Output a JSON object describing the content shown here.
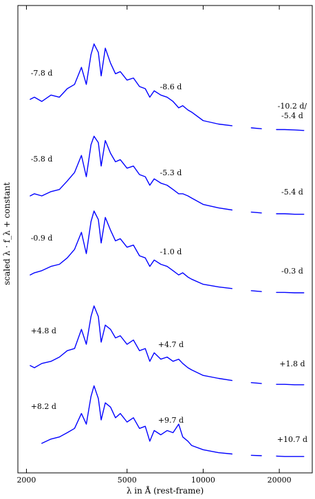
{
  "chart_data": {
    "type": "line",
    "title": "",
    "xlabel": "λ in Å (rest-frame)",
    "ylabel": "scaled λ · f_λ + constant",
    "x_scale": "log",
    "xlim": [
      1850,
      27000
    ],
    "x_ticks": [
      2000,
      5000,
      10000,
      20000
    ],
    "x_tick_labels": [
      "2000",
      "5000",
      "10000",
      "20000"
    ],
    "y_ticks": "none",
    "grid": false,
    "legend": "none",
    "line_color": "#0000ff",
    "series": [
      {
        "labels": [
          {
            "text": "-7.8 d",
            "x": 2080
          },
          {
            "text": "-8.6 d",
            "x": 7450
          },
          {
            "text": "-10.2 d/",
            "x": 22500
          },
          {
            "text": "-5.4 d",
            "x": 22500
          }
        ],
        "x": [
          2070,
          2150,
          2300,
          2500,
          2700,
          2900,
          3100,
          3300,
          3450,
          3600,
          3700,
          3850,
          3950,
          4100,
          4300,
          4500,
          4700,
          5000,
          5300,
          5600,
          5900,
          6150,
          6400,
          6800,
          7200,
          7600,
          8000,
          8300,
          8700,
          9000,
          10000,
          11500,
          13000,
          14000,
          15500,
          17000,
          18000,
          19500,
          21000,
          23000,
          25000
        ],
        "y": [
          0.25,
          0.3,
          0.2,
          0.35,
          0.3,
          0.5,
          0.6,
          1.0,
          0.6,
          1.3,
          1.55,
          1.35,
          0.8,
          1.45,
          1.1,
          0.85,
          0.9,
          0.7,
          0.75,
          0.55,
          0.5,
          0.3,
          0.45,
          0.35,
          0.3,
          0.2,
          0.05,
          0.1,
          0.0,
          -0.05,
          -0.25,
          -0.33,
          -0.37,
          -0.4,
          -0.42,
          -0.44,
          -0.45,
          -0.46,
          -0.46,
          -0.47,
          -0.48
        ]
      },
      {
        "labels": [
          {
            "text": "-5.8 d",
            "x": 2080
          },
          {
            "text": "-5.3 d",
            "x": 7450
          },
          {
            "text": "-5.4 d",
            "x": 22500
          }
        ],
        "x": [
          2070,
          2150,
          2300,
          2500,
          2700,
          2900,
          3100,
          3300,
          3450,
          3600,
          3700,
          3850,
          3950,
          4100,
          4300,
          4500,
          4700,
          5000,
          5300,
          5600,
          5900,
          6150,
          6400,
          6800,
          7200,
          7600,
          8000,
          8300,
          8700,
          9000,
          10000,
          11500,
          13000,
          14000,
          15500,
          17000,
          18000,
          19500,
          21000,
          23000,
          25000
        ],
        "y": [
          0.0,
          0.05,
          0.0,
          0.1,
          0.15,
          0.35,
          0.55,
          0.95,
          0.45,
          1.2,
          1.4,
          1.25,
          0.7,
          1.3,
          1.0,
          0.8,
          0.85,
          0.65,
          0.7,
          0.5,
          0.45,
          0.25,
          0.4,
          0.3,
          0.25,
          0.15,
          0.05,
          0.05,
          0.0,
          -0.05,
          -0.2,
          -0.28,
          -0.33,
          -0.36,
          -0.38,
          -0.4,
          -0.41,
          -0.42,
          -0.42,
          -0.43,
          -0.43
        ]
      },
      {
        "labels": [
          {
            "text": "-0.9 d",
            "x": 2080
          },
          {
            "text": "-1.0 d",
            "x": 7450
          },
          {
            "text": "-0.3 d",
            "x": 22500
          }
        ],
        "x": [
          2070,
          2150,
          2300,
          2500,
          2700,
          2900,
          3100,
          3300,
          3450,
          3600,
          3700,
          3850,
          3950,
          4100,
          4300,
          4500,
          4700,
          5000,
          5300,
          5600,
          5900,
          6150,
          6400,
          6800,
          7200,
          7600,
          8000,
          8300,
          8700,
          9000,
          10000,
          11500,
          13000,
          14000,
          15500,
          17000,
          18000,
          19500,
          21000,
          23000,
          25000
        ],
        "y": [
          0.0,
          0.05,
          0.1,
          0.2,
          0.25,
          0.4,
          0.6,
          1.0,
          0.5,
          1.25,
          1.5,
          1.3,
          0.75,
          1.35,
          1.05,
          0.8,
          0.85,
          0.65,
          0.7,
          0.45,
          0.4,
          0.2,
          0.35,
          0.25,
          0.2,
          0.1,
          0.0,
          0.05,
          -0.05,
          -0.1,
          -0.22,
          -0.28,
          -0.32,
          -0.35,
          -0.37,
          -0.39,
          -0.4,
          -0.41,
          -0.41,
          -0.42,
          -0.42
        ]
      },
      {
        "labels": [
          {
            "text": "+4.8 d",
            "x": 2080
          },
          {
            "text": "+4.7 d",
            "x": 7450
          },
          {
            "text": "+1.8 d",
            "x": 22500
          }
        ],
        "x": [
          2070,
          2150,
          2300,
          2500,
          2700,
          2900,
          3100,
          3300,
          3450,
          3600,
          3700,
          3850,
          3950,
          4100,
          4300,
          4500,
          4700,
          5000,
          5300,
          5600,
          5900,
          6150,
          6400,
          6800,
          7200,
          7600,
          8000,
          8300,
          8700,
          9000,
          10000,
          11500,
          13000,
          14000,
          15500,
          17000,
          18000,
          19500,
          21000,
          23000,
          25000
        ],
        "y": [
          0.05,
          0.0,
          0.1,
          0.15,
          0.25,
          0.4,
          0.45,
          0.9,
          0.55,
          1.2,
          1.45,
          1.2,
          0.6,
          1.0,
          0.9,
          0.7,
          0.75,
          0.55,
          0.65,
          0.4,
          0.45,
          0.15,
          0.35,
          0.2,
          0.25,
          0.15,
          0.2,
          0.1,
          0.0,
          -0.05,
          -0.18,
          -0.25,
          -0.3,
          -0.33,
          -0.35,
          -0.37,
          -0.38,
          -0.39,
          -0.39,
          -0.4,
          -0.4
        ]
      },
      {
        "labels": [
          {
            "text": "+8.2 d",
            "x": 2080
          },
          {
            "text": "+9.7 d",
            "x": 7450
          },
          {
            "text": "+10.7 d",
            "x": 22500
          }
        ],
        "x": [
          2300,
          2500,
          2700,
          2900,
          3100,
          3300,
          3450,
          3600,
          3700,
          3850,
          3950,
          4100,
          4300,
          4500,
          4700,
          5000,
          5300,
          5600,
          5900,
          6150,
          6400,
          6800,
          7200,
          7600,
          8000,
          8300,
          8700,
          9000,
          10000,
          11500,
          13000,
          14000,
          15500,
          17000,
          18000,
          19500,
          21000,
          23000,
          25000
        ],
        "y": [
          0.0,
          0.1,
          0.15,
          0.25,
          0.35,
          0.7,
          0.45,
          1.1,
          1.35,
          1.05,
          0.55,
          0.95,
          0.85,
          0.6,
          0.7,
          0.5,
          0.6,
          0.35,
          0.4,
          0.05,
          0.3,
          0.2,
          0.3,
          0.25,
          0.45,
          0.15,
          0.05,
          -0.05,
          -0.15,
          -0.22,
          -0.25,
          -0.27,
          -0.28,
          -0.29,
          -0.3,
          -0.3,
          -0.31,
          -0.31,
          -0.31
        ]
      }
    ]
  }
}
